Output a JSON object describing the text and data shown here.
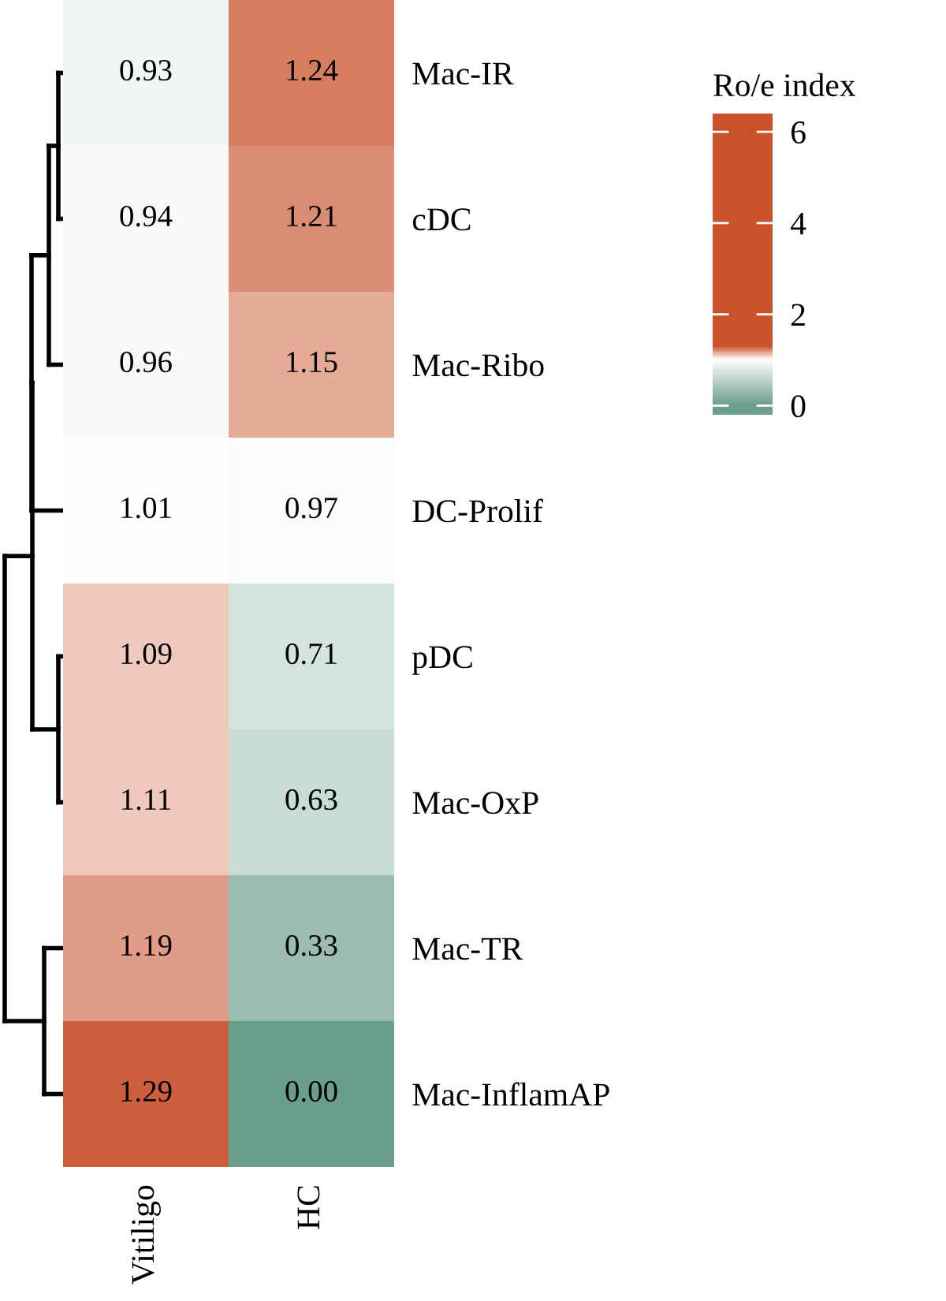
{
  "chart_data": {
    "type": "heatmap",
    "categories": [
      "Vitiligo",
      "HC"
    ],
    "y_categories": [
      "Mac-IR",
      "cDC",
      "Mac-Ribo",
      "DC-Prolif",
      "pDC",
      "Mac-OxP",
      "Mac-TR",
      "Mac-InflamAP"
    ],
    "cells": [
      [
        0.93,
        1.24
      ],
      [
        0.94,
        1.21
      ],
      [
        0.96,
        1.15
      ],
      [
        1.01,
        0.97
      ],
      [
        1.09,
        0.71
      ],
      [
        1.11,
        0.63
      ],
      [
        1.19,
        0.33
      ],
      [
        1.29,
        0.0
      ]
    ],
    "cell_labels": [
      [
        "0.93",
        "1.24"
      ],
      [
        "0.94",
        "1.21"
      ],
      [
        "0.96",
        "1.15"
      ],
      [
        "1.01",
        "0.97"
      ],
      [
        "1.09",
        "0.71"
      ],
      [
        "1.11",
        "0.63"
      ],
      [
        "1.19",
        "0.33"
      ],
      [
        "1.29",
        "0.00"
      ]
    ],
    "clabel": "Ro/e index",
    "clim": [
      -0.2,
      6.4
    ],
    "cticks": [
      0,
      2,
      4,
      6
    ],
    "colors": [
      "#6b9f8b",
      "#ffffff",
      "#c9522b"
    ]
  }
}
